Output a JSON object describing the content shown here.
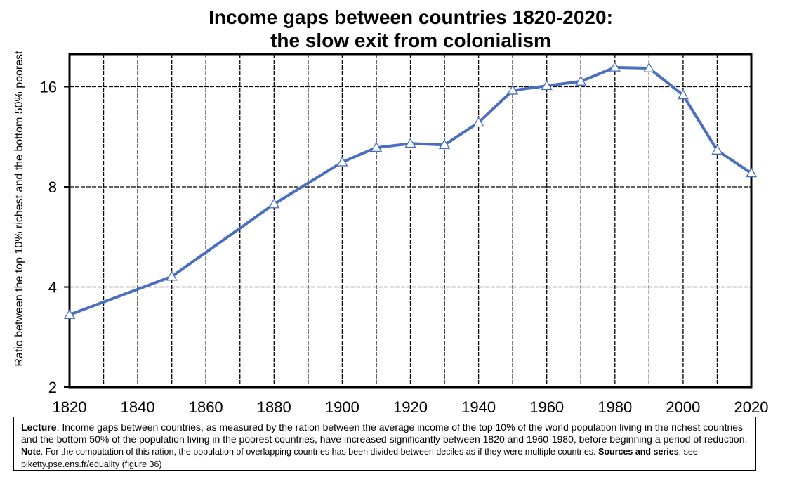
{
  "chart_data": {
    "type": "line",
    "title_line1": "Income gaps between countries 1820-2020:",
    "title_line2": "the slow exit from colonialism",
    "xlabel": "",
    "ylabel": "Ratio between the top 10% richest and the bottom 50% poorest",
    "y_scale": "log2",
    "ylim": [
      2,
      20
    ],
    "xlim": [
      1820,
      2020
    ],
    "y_ticks": [
      2,
      4,
      8,
      16
    ],
    "x_ticks": [
      1820,
      1840,
      1860,
      1880,
      1900,
      1920,
      1940,
      1960,
      1980,
      2000,
      2020
    ],
    "x_grid": [
      1830,
      1840,
      1850,
      1860,
      1870,
      1880,
      1890,
      1900,
      1910,
      1920,
      1930,
      1940,
      1950,
      1960,
      1970,
      1980,
      1990,
      2000,
      2010
    ],
    "grid": true,
    "legend": "none",
    "line_color": "#4a6fbe",
    "marker": "triangle",
    "x": [
      1820,
      1850,
      1880,
      1900,
      1910,
      1920,
      1930,
      1940,
      1950,
      1960,
      1970,
      1980,
      1990,
      2000,
      2010,
      2020
    ],
    "values": [
      3.3,
      4.3,
      7.1,
      9.5,
      10.5,
      10.8,
      10.7,
      12.5,
      15.6,
      16.1,
      16.6,
      18.3,
      18.2,
      15.1,
      10.3,
      8.8
    ]
  },
  "note": {
    "lecture_label": "Lecture",
    "lecture_text": ". Income gaps between countries, as measured by the ration between the average income of the top 10% of the world population living in the richest countries and the bottom 50% of the population living in the poorest countries, have increased significantly between 1820 and 1960-1980, before beginning a period of reduction.",
    "note_label": "Note",
    "note_text": ". For the computation of this ration, the population of overlapping countries has been divided between deciles as if they were multiple countries.",
    "sources_label": "Sources and series",
    "sources_text": ": see piketty.pse.ens.fr/equality (figure 36)"
  }
}
